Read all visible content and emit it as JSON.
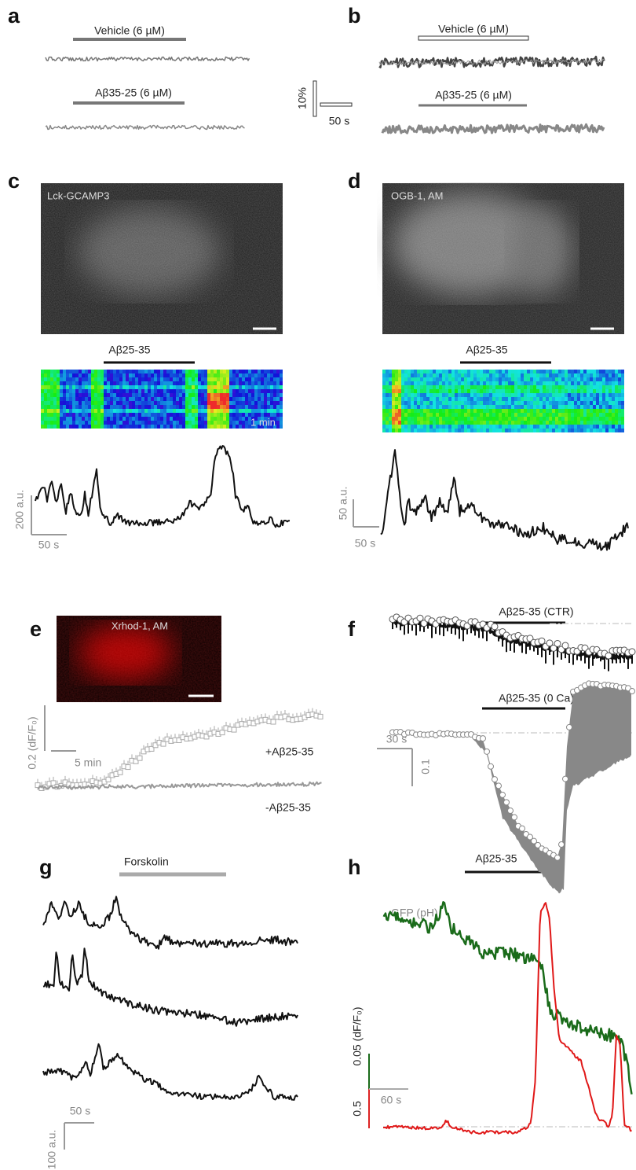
{
  "panels": [
    {
      "letter": "a",
      "labels": [
        "Vehicle (6 µM)",
        "Aβ35-25 (6 µM)"
      ]
    },
    {
      "letter": "b",
      "labels": [
        "Vehicle (6 µM)",
        "Aβ35-25 (6 µM)",
        "10%",
        "50 s"
      ]
    },
    {
      "letter": "c",
      "labels": [
        "Lck-GCAMP3",
        "Aβ25-35",
        "1 min",
        "200 a.u.",
        "50 s"
      ]
    },
    {
      "letter": "d",
      "labels": [
        "OGB-1, AM",
        "Aβ25-35",
        "50 a.u.",
        "50 s"
      ]
    },
    {
      "letter": "e",
      "labels": [
        "Xrhod-1, AM",
        "0.2 (dF/F₀)",
        "5 min",
        "+Aβ25-35",
        "-Aβ25-35"
      ]
    },
    {
      "letter": "f",
      "labels": [
        "Aβ25-35 (CTR)",
        "Aβ25-35 (0 Ca)",
        "30 s",
        "0.1"
      ]
    },
    {
      "letter": "g",
      "labels": [
        "Forskolin",
        "100 a.u.",
        "50 s"
      ]
    },
    {
      "letter": "h",
      "labels": [
        "Aβ25-35",
        "GFP (pH)",
        "0.05 (dF/F₀)",
        "0.5",
        "60 s"
      ]
    }
  ]
}
